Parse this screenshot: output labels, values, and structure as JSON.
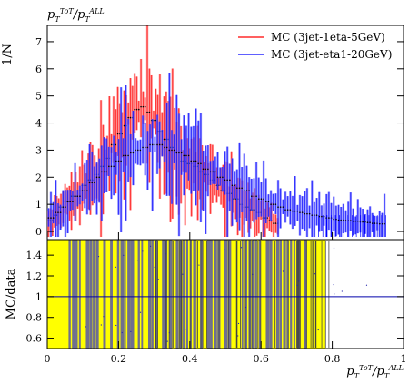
{
  "chart_data": [
    {
      "type": "histogram",
      "panel": "top",
      "title": "",
      "ylabel": "1/N",
      "xlim": [
        0,
        1
      ],
      "ylim": [
        -0.3,
        7.6
      ],
      "y_ticks": [
        "0",
        "1",
        "2",
        "3",
        "4",
        "5",
        "6",
        "7"
      ],
      "legend_position": "top-right",
      "series": [
        {
          "name": "MC (3jet-1eta-5GeV)",
          "color": "#ff0000",
          "band_color": "#ff6b6b",
          "x_range": [
            0.0,
            0.65
          ],
          "values": [
            0.4,
            0.6,
            0.9,
            1.1,
            1.3,
            1.5,
            1.7,
            1.9,
            2.1,
            2.4,
            2.7,
            3.2,
            3.6,
            3.9,
            4.2,
            4.5,
            4.6,
            4.4,
            4.1,
            3.7,
            3.4,
            3.1,
            2.9,
            2.6,
            2.5,
            2.4,
            2.2,
            2.1,
            1.9,
            1.7,
            1.5,
            1.4,
            1.2,
            1.0,
            0.9,
            0.8,
            0.7,
            0.5,
            0.4,
            0.3
          ]
        },
        {
          "name": "MC (3jet-eta1-20GeV)",
          "color": "#0000ff",
          "band_color": "#5c5cff",
          "x_range": [
            0.0,
            0.95
          ],
          "values": [
            0.5,
            0.7,
            0.9,
            1.1,
            1.3,
            1.5,
            1.8,
            2.0,
            2.2,
            2.4,
            2.6,
            2.8,
            2.9,
            3.0,
            3.1,
            3.2,
            3.2,
            3.1,
            3.0,
            2.9,
            2.8,
            2.6,
            2.5,
            2.3,
            2.2,
            2.0,
            1.9,
            1.7,
            1.6,
            1.5,
            1.3,
            1.2,
            1.1,
            1.0,
            0.9,
            0.8,
            0.75,
            0.7,
            0.65,
            0.6,
            0.55,
            0.5,
            0.45,
            0.42,
            0.4,
            0.38,
            0.35,
            0.33,
            0.3,
            0.28
          ]
        }
      ]
    },
    {
      "type": "ratio",
      "panel": "bottom",
      "ylabel": "MC/data",
      "xlabel": "p_T^{ToT}/p_T^{ALL}",
      "xlim": [
        0,
        1
      ],
      "ylim": [
        0.5,
        1.55
      ],
      "y_ticks": [
        "0.6",
        "0.8",
        "1",
        "1.2",
        "1.4"
      ],
      "x_ticks": [
        "0",
        "0.2",
        "0.4",
        "0.6",
        "0.8",
        "1"
      ],
      "reference_line": 1,
      "yellow_band_x_range": [
        0.0,
        0.78
      ],
      "gray_band_x_range": [
        0.05,
        0.73
      ],
      "band_colors": {
        "yellow": "#ffff00",
        "gray": "#6f6f8f"
      }
    }
  ],
  "labels": {
    "top_left_label": "p_T^{ToT}/p_T^{ALL}"
  }
}
